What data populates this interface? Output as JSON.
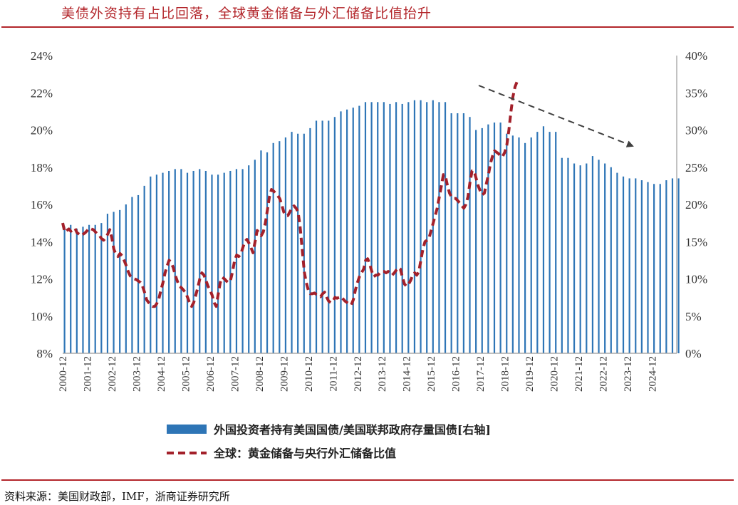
{
  "title": "美债外资持有占比回落，全球黄金储备与外汇储备比值抬升",
  "source": "资料来源：美国财政部，IMF，浙商证券研究所",
  "colors": {
    "bar": "#2e75b6",
    "line": "#a3202a",
    "title": "#b3262b",
    "arrow": "#404040"
  },
  "chart_data": {
    "type": "bar+line",
    "x_ticks": [
      "2000-12",
      "2001-12",
      "2002-12",
      "2003-12",
      "2004-12",
      "2005-12",
      "2006-12",
      "2007-12",
      "2008-12",
      "2009-12",
      "2010-12",
      "2011-12",
      "2012-12",
      "2013-12",
      "2014-12",
      "2015-12",
      "2016-12",
      "2017-12",
      "2018-12",
      "2019-12",
      "2020-12",
      "2021-12",
      "2022-12",
      "2023-12",
      "2024-12"
    ],
    "y_left": {
      "ticks": [
        "8%",
        "10%",
        "12%",
        "14%",
        "16%",
        "18%",
        "20%",
        "22%",
        "24%"
      ],
      "range": [
        8,
        24
      ]
    },
    "y_right": {
      "ticks": [
        "0%",
        "5%",
        "10%",
        "15%",
        "20%",
        "25%",
        "30%",
        "35%",
        "40%"
      ],
      "range": [
        0,
        40
      ]
    },
    "series": [
      {
        "name": "外国投资者持有美国国债/美国联邦政府存量国债[右轴]",
        "type": "bar",
        "axis": "left",
        "frequency": "quarterly",
        "start": "2000-12",
        "values": [
          14.8,
          14.9,
          14.7,
          14.8,
          14.9,
          14.9,
          15.0,
          15.5,
          15.6,
          15.7,
          16.0,
          16.4,
          16.5,
          17.0,
          17.5,
          17.6,
          17.7,
          17.8,
          17.9,
          17.9,
          17.7,
          17.8,
          17.9,
          17.8,
          17.6,
          17.6,
          17.7,
          17.8,
          17.9,
          17.9,
          18.1,
          18.4,
          18.9,
          18.8,
          19.3,
          19.4,
          19.6,
          19.9,
          19.8,
          19.8,
          20.1,
          20.5,
          20.5,
          20.5,
          20.7,
          21.0,
          21.1,
          21.2,
          21.3,
          21.5,
          21.5,
          21.5,
          21.5,
          21.4,
          21.5,
          21.4,
          21.5,
          21.6,
          21.6,
          21.5,
          21.6,
          21.5,
          21.5,
          20.9,
          20.9,
          20.9,
          20.7,
          20.0,
          20.1,
          20.3,
          20.4,
          20.4,
          19.8,
          19.7,
          19.6,
          19.3,
          19.6,
          19.9,
          20.2,
          19.9,
          19.9,
          18.5,
          18.5,
          18.2,
          18.1,
          18.2,
          18.6,
          18.4,
          18.2,
          18.0,
          17.7,
          17.5,
          17.4,
          17.4,
          17.3,
          17.2,
          17.1,
          17.1,
          17.3,
          17.4,
          17.4
        ]
      },
      {
        "name": "全球：黄金储备与央行外汇储备比值",
        "type": "line",
        "axis": "right",
        "style": "dashed",
        "frequency": "monthly",
        "start": "2000-12",
        "values": [
          17.5,
          16.3,
          16.5,
          16.7,
          16.4,
          16.6,
          16.8,
          16.2,
          16.0,
          15.8,
          16.0,
          16.2,
          16.5,
          16.8,
          16.7,
          16.6,
          16.3,
          16.0,
          15.8,
          15.4,
          15.2,
          15.5,
          16.0,
          16.6,
          15.5,
          14.0,
          13.3,
          13.0,
          13.4,
          13.1,
          12.5,
          11.8,
          11.0,
          10.4,
          10.2,
          10.0,
          9.9,
          9.7,
          9.5,
          9.0,
          8.2,
          7.2,
          6.8,
          6.5,
          6.3,
          6.3,
          6.7,
          7.3,
          8.5,
          9.5,
          10.8,
          11.7,
          12.5,
          12.2,
          11.5,
          10.5,
          9.7,
          9.0,
          8.8,
          8.5,
          8.2,
          7.5,
          6.8,
          6.3,
          6.8,
          7.8,
          8.8,
          10.0,
          10.8,
          10.5,
          9.8,
          9.0,
          8.5,
          7.8,
          6.8,
          6.3,
          8.0,
          9.5,
          10.2,
          10.0,
          9.7,
          9.5,
          9.8,
          11.0,
          12.5,
          13.2,
          13.0,
          13.3,
          14.2,
          15.0,
          15.3,
          14.8,
          14.2,
          13.5,
          15.0,
          16.5,
          16.2,
          15.8,
          16.3,
          17.5,
          19.2,
          21.0,
          22.0,
          21.8,
          21.5,
          21.2,
          20.8,
          20.0,
          19.0,
          18.5,
          18.5,
          19.0,
          19.5,
          19.8,
          19.5,
          19.0,
          17.0,
          14.0,
          11.0,
          9.5,
          8.5,
          8.0,
          8.0,
          8.1,
          7.9,
          7.8,
          7.6,
          8.0,
          8.2,
          7.5,
          7.0,
          6.8,
          7.0,
          7.5,
          7.4,
          7.5,
          7.6,
          7.3,
          7.0,
          6.8,
          6.6,
          6.5,
          7.2,
          8.5,
          9.5,
          10.3,
          10.8,
          11.3,
          12.5,
          12.7,
          12.0,
          11.0,
          10.3,
          10.5,
          10.5,
          10.8,
          11.0,
          11.0,
          10.8,
          11.0,
          10.8,
          10.5,
          10.8,
          11.2,
          11.5,
          11.3,
          10.2,
          9.3,
          9.0,
          9.3,
          9.8,
          10.5,
          10.8,
          10.5,
          11.0,
          12.5,
          14.0,
          15.0,
          15.2,
          15.5,
          16.5,
          17.5,
          18.5,
          19.5,
          21.0,
          22.5,
          24.0,
          23.8,
          22.5,
          21.5,
          21.0,
          20.8,
          20.8,
          20.5,
          20.2,
          19.8,
          19.5,
          20.0,
          21.0,
          23.0,
          24.5,
          24.5,
          23.5,
          22.5,
          21.8,
          21.3,
          21.5,
          22.8,
          24.0,
          25.5,
          26.5,
          27.2,
          27.0,
          26.8,
          26.4,
          26.5,
          27.0,
          28.0,
          30.0,
          32.5,
          34.5,
          35.8,
          36.5,
          36.4
        ]
      }
    ],
    "annotation": "dashed arrow pointing down-right toward the right end of the series"
  }
}
